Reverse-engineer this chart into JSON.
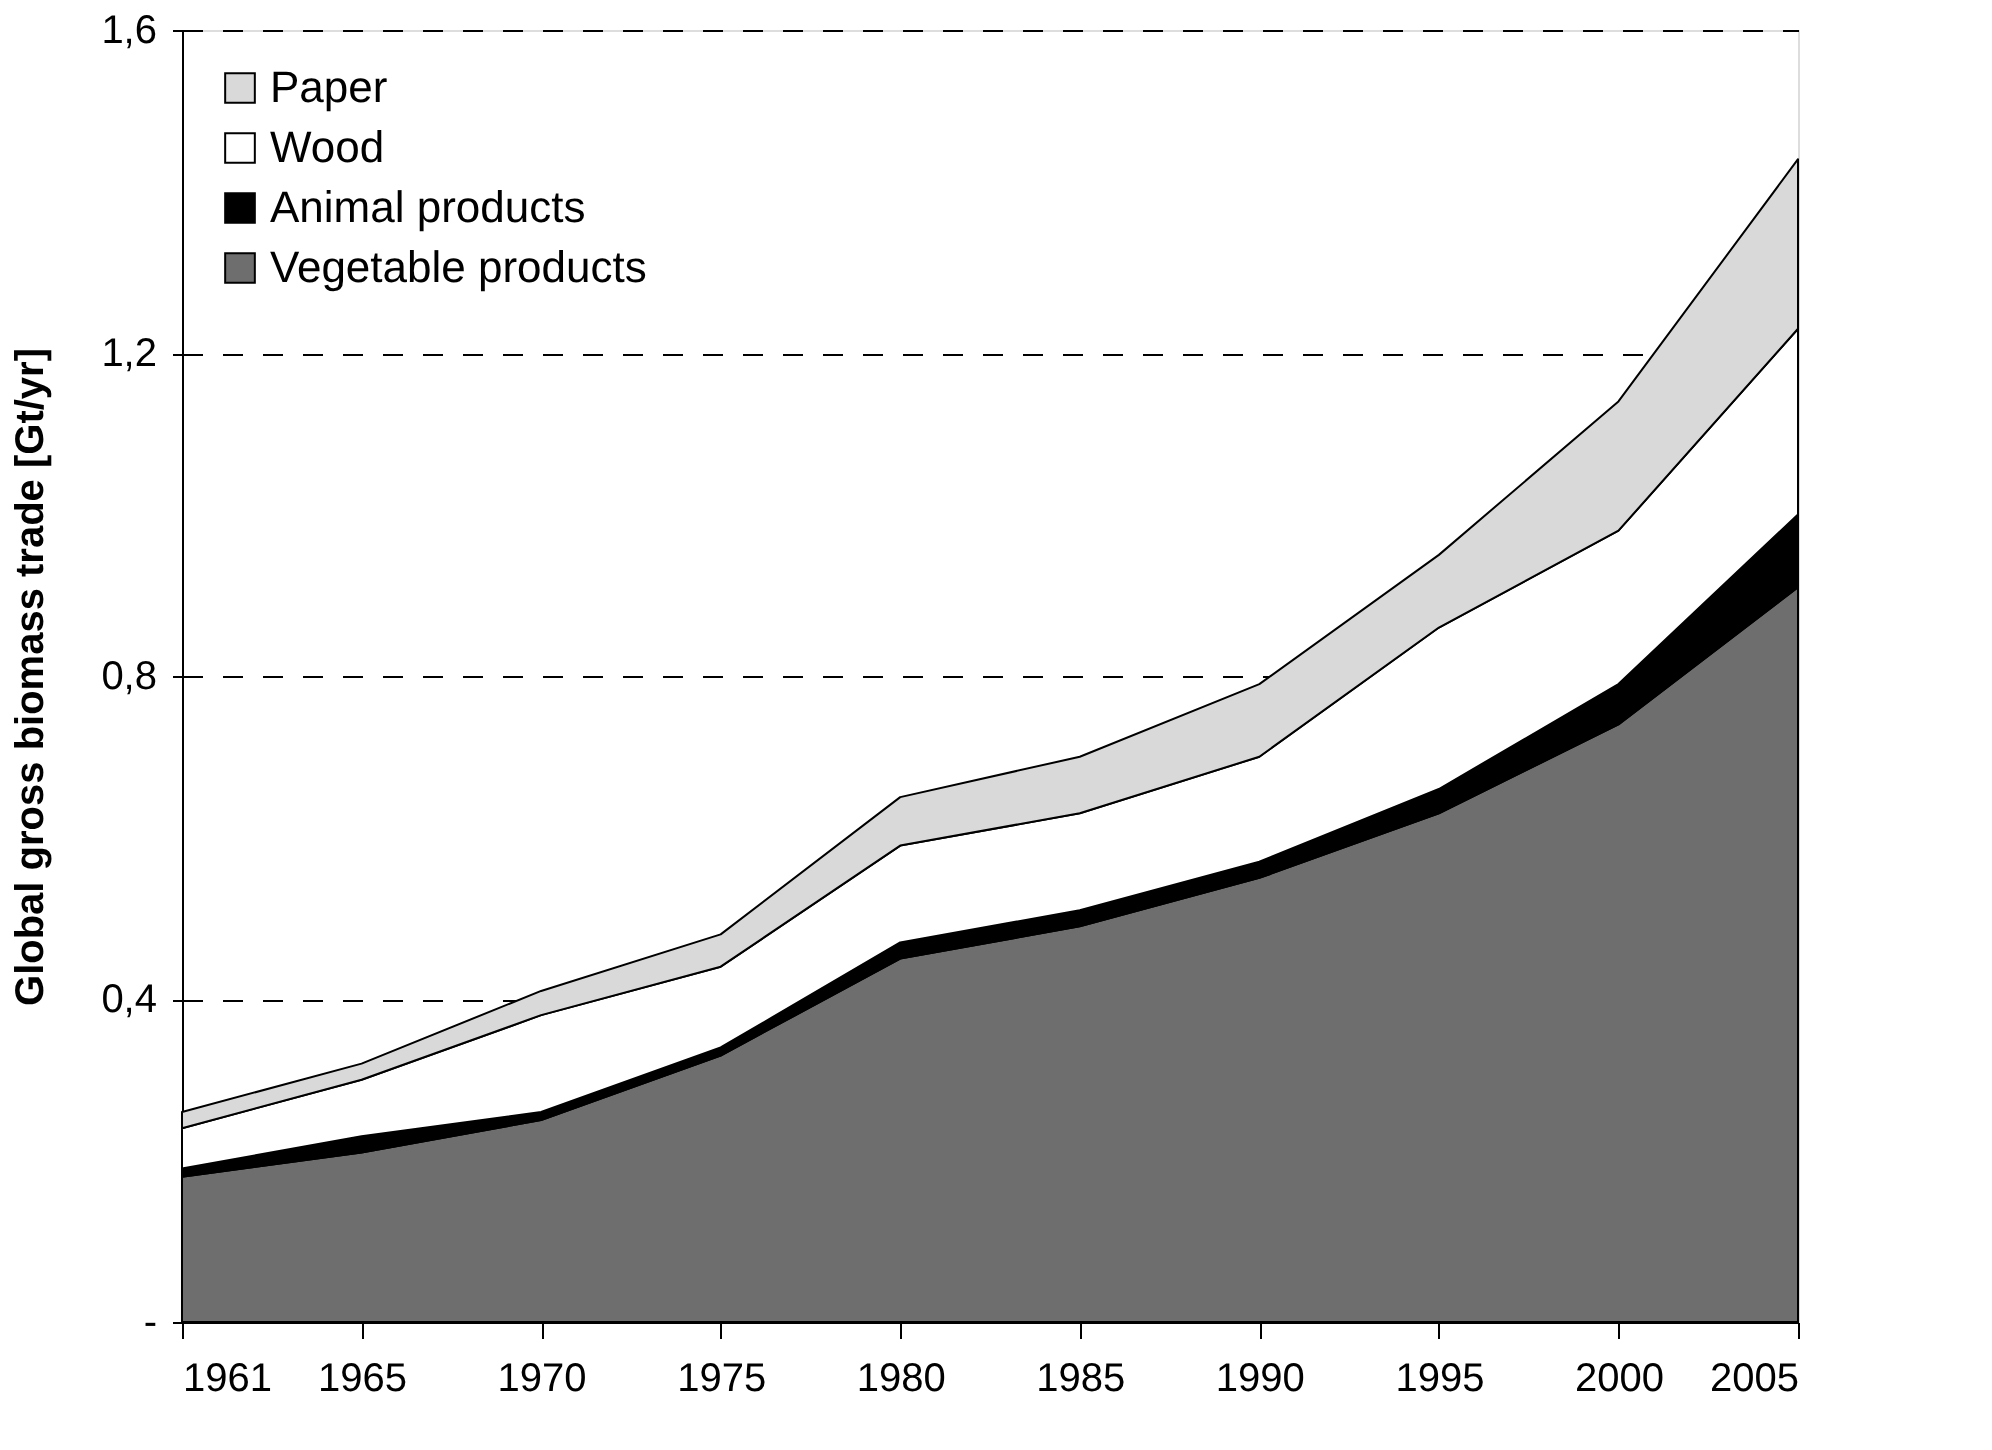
{
  "chart_data": {
    "type": "area",
    "stacked": true,
    "ylabel": "Global gross biomass trade [Gt/yr]",
    "categories": [
      "1961",
      "1965",
      "1970",
      "1975",
      "1980",
      "1985",
      "1990",
      "1995",
      "2000",
      "2005"
    ],
    "series": [
      {
        "name": "Vegetable products",
        "color": "#6e6e6e",
        "values": [
          0.18,
          0.21,
          0.25,
          0.33,
          0.45,
          0.49,
          0.55,
          0.63,
          0.74,
          0.91
        ]
      },
      {
        "name": "Animal products",
        "color": "#000000",
        "values": [
          0.01,
          0.02,
          0.01,
          0.01,
          0.02,
          0.02,
          0.02,
          0.03,
          0.05,
          0.09
        ]
      },
      {
        "name": "Wood",
        "color": "#ffffff",
        "values": [
          0.05,
          0.07,
          0.12,
          0.1,
          0.12,
          0.12,
          0.13,
          0.2,
          0.19,
          0.23
        ]
      },
      {
        "name": "Paper",
        "color": "#d9d9d9",
        "values": [
          0.02,
          0.02,
          0.03,
          0.04,
          0.06,
          0.07,
          0.09,
          0.09,
          0.16,
          0.21
        ]
      }
    ],
    "ylim": [
      0,
      1.6
    ],
    "yticks": [
      {
        "value": 0,
        "label": "-"
      },
      {
        "value": 0.4,
        "label": "0,4"
      },
      {
        "value": 0.8,
        "label": "0,8"
      },
      {
        "value": 1.2,
        "label": "1,2"
      },
      {
        "value": 1.6,
        "label": "1,6"
      }
    ],
    "grid": "y",
    "legend": "top left"
  }
}
